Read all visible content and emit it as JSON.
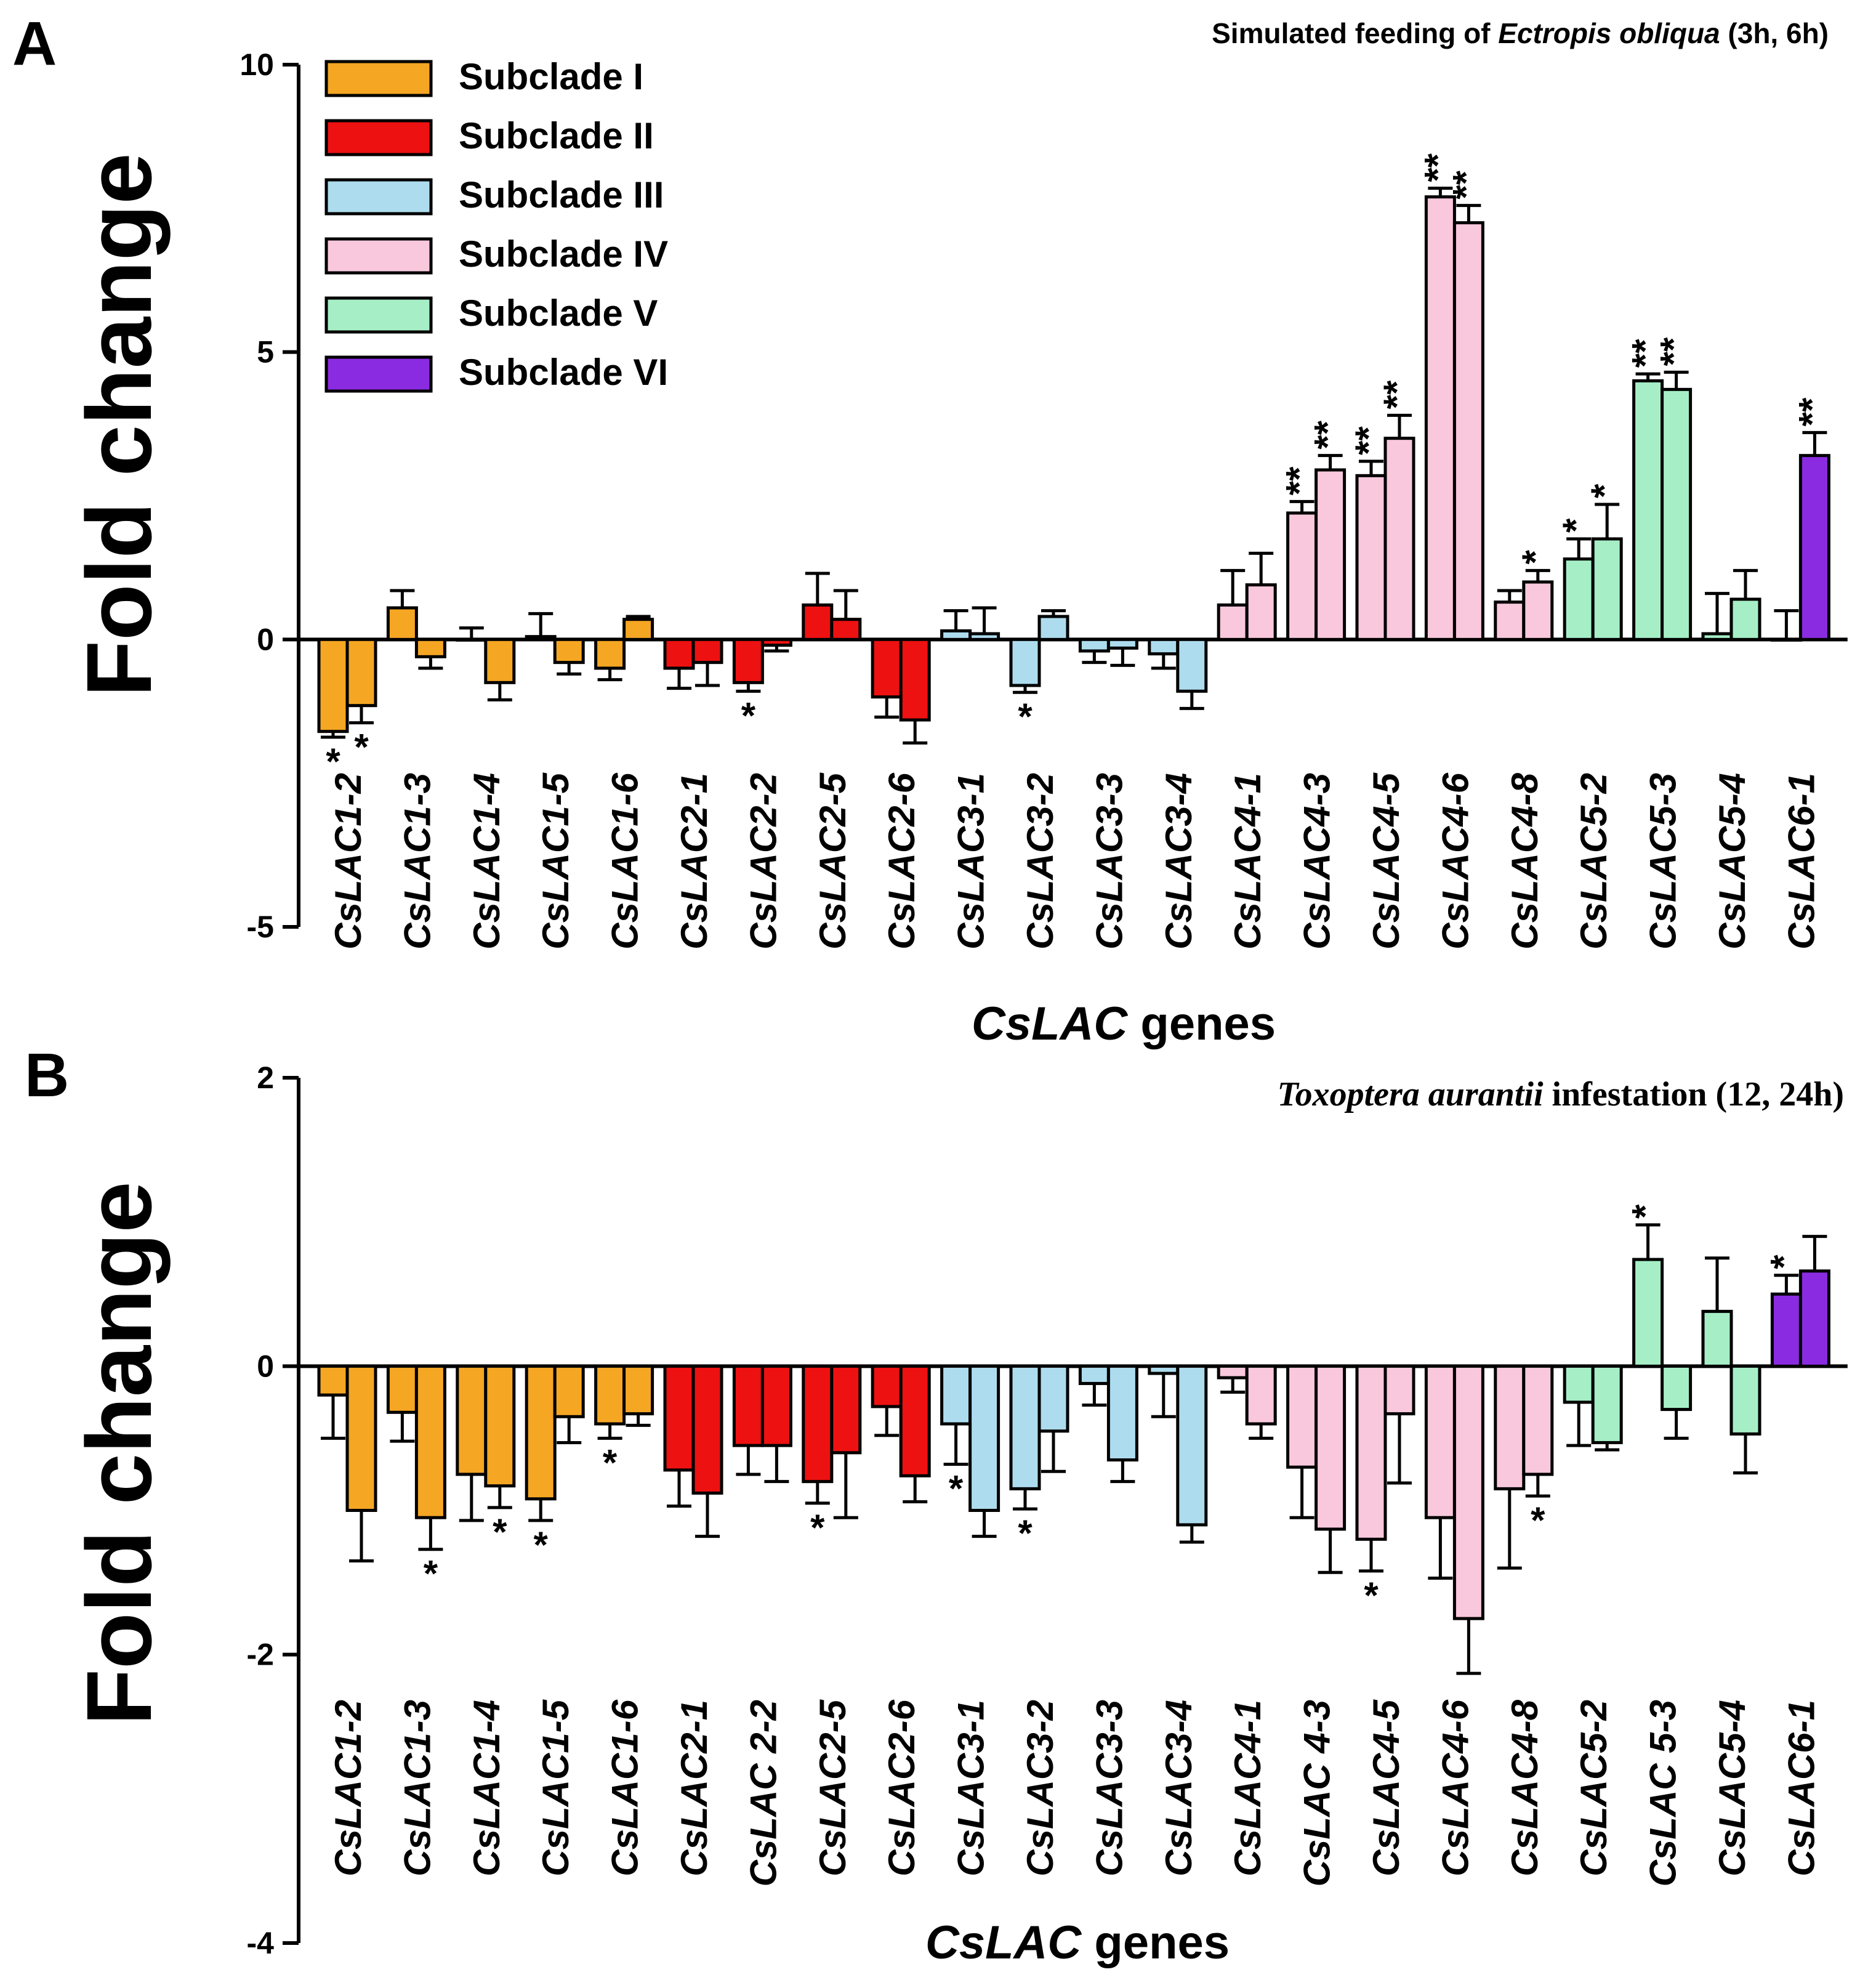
{
  "colors": {
    "subclade_I": "#F5A623",
    "subclade_II": "#EE1111",
    "subclade_III": "#ADDCEE",
    "subclade_IV": "#F9C8DC",
    "subclade_V": "#A6EFC6",
    "subclade_VI": "#8A2BE2"
  },
  "legend": [
    {
      "label": "Subclade I",
      "color_key": "subclade_I"
    },
    {
      "label": "Subclade II",
      "color_key": "subclade_II"
    },
    {
      "label": "Subclade III",
      "color_key": "subclade_III"
    },
    {
      "label": "Subclade IV",
      "color_key": "subclade_IV"
    },
    {
      "label": "Subclade V",
      "color_key": "subclade_V"
    },
    {
      "label": "Subclade VI",
      "color_key": "subclade_VI"
    }
  ],
  "chart_data": [
    {
      "panel": "A",
      "type": "bar",
      "subtitle_parts": [
        "Simulated feeding of ",
        "Ectropis obliqua",
        " (3h, 6h)"
      ],
      "xlabel_italic": "CsLAC",
      "xlabel_rest": " genes",
      "ylabel": "Fold change",
      "ylim": [
        -5,
        10
      ],
      "yticks": [
        -5,
        0,
        5,
        10
      ],
      "legend_position": "top-left",
      "categories": [
        "CsLAC1-2",
        "CsLAC1-3",
        "CsLAC1-4",
        "CsLAC1-5",
        "CsLAC1-6",
        "CsLAC2-1",
        "CsLAC2-2",
        "CsLAC2-5",
        "CsLAC2-6",
        "CsLAC3-1",
        "CsLAC3-2",
        "CsLAC3-3",
        "CsLAC3-4",
        "CsLAC4-1",
        "CsLAC4-3",
        "CsLAC4-5",
        "CsLAC4-6",
        "CsLAC4-8",
        "CsLAC5-2",
        "CsLAC5-3",
        "CsLAC5-4",
        "CsLAC6-1"
      ],
      "subclade": [
        "subclade_I",
        "subclade_I",
        "subclade_I",
        "subclade_I",
        "subclade_I",
        "subclade_II",
        "subclade_II",
        "subclade_II",
        "subclade_II",
        "subclade_III",
        "subclade_III",
        "subclade_III",
        "subclade_III",
        "subclade_IV",
        "subclade_IV",
        "subclade_IV",
        "subclade_IV",
        "subclade_IV",
        "subclade_V",
        "subclade_V",
        "subclade_V",
        "subclade_VI"
      ],
      "series": [
        {
          "name": "3h",
          "values": [
            -1.6,
            0.55,
            0.0,
            0.05,
            -0.5,
            -0.5,
            -0.75,
            0.6,
            -1.0,
            0.15,
            -0.8,
            -0.2,
            -0.25,
            0.6,
            2.2,
            2.85,
            7.7,
            0.65,
            1.4,
            4.5,
            0.1,
            0.0
          ],
          "errors": [
            0.1,
            0.3,
            0.2,
            0.4,
            0.2,
            0.35,
            0.15,
            0.55,
            0.35,
            0.35,
            0.12,
            0.2,
            0.25,
            0.6,
            0.2,
            0.25,
            0.15,
            0.2,
            0.35,
            0.12,
            0.7,
            0.5
          ],
          "sig": [
            "*",
            "",
            "",
            "",
            "",
            "",
            "*",
            "",
            "",
            "",
            "*",
            "",
            "",
            "",
            "**",
            "**",
            "**",
            "",
            "*",
            "**",
            "",
            ""
          ]
        },
        {
          "name": "6h",
          "values": [
            -1.15,
            -0.3,
            -0.75,
            -0.4,
            0.35,
            -0.4,
            -0.1,
            0.35,
            -1.4,
            0.1,
            0.4,
            -0.15,
            -0.9,
            0.95,
            2.95,
            3.5,
            7.25,
            1.0,
            1.75,
            4.35,
            0.7,
            3.2
          ],
          "errors": [
            0.3,
            0.2,
            0.3,
            0.2,
            0.05,
            0.4,
            0.1,
            0.5,
            0.4,
            0.45,
            0.1,
            0.3,
            0.3,
            0.55,
            0.25,
            0.4,
            0.3,
            0.2,
            0.6,
            0.3,
            0.5,
            0.4
          ],
          "sig": [
            "*",
            "",
            "",
            "",
            "",
            "",
            "",
            "",
            "",
            "",
            "",
            "",
            "",
            "",
            "**",
            "**",
            "**",
            "*",
            "*",
            "**",
            "",
            "**"
          ]
        }
      ]
    },
    {
      "panel": "B",
      "type": "bar",
      "subtitle_parts": [
        "",
        "Toxoptera aurantii",
        " infestation (12, 24h)"
      ],
      "xlabel_italic": "CsLAC",
      "xlabel_rest": " genes",
      "ylabel": "Fold change",
      "ylim": [
        -4,
        2
      ],
      "yticks": [
        -4,
        -2,
        0,
        2
      ],
      "categories": [
        "CsLAC1-2",
        "CsLAC1-3",
        "CsLAC1-4",
        "CsLAC1-5",
        "CsLAC1-6",
        "CsLAC2-1",
        "CsLAC 2-2",
        "CsLAC2-5",
        "CsLAC2-6",
        "CsLAC3-1",
        "CsLAC3-2",
        "CsLAC3-3",
        "CsLAC3-4",
        "CsLAC4-1",
        "CsLAC 4-3",
        "CsLAC4-5",
        "CsLAC4-6",
        "CsLAC4-8",
        "CsLAC5-2",
        "CsLAC 5-3",
        "CsLAC5-4",
        "CsLAC6-1"
      ],
      "subclade": [
        "subclade_I",
        "subclade_I",
        "subclade_I",
        "subclade_I",
        "subclade_I",
        "subclade_II",
        "subclade_II",
        "subclade_II",
        "subclade_II",
        "subclade_III",
        "subclade_III",
        "subclade_III",
        "subclade_III",
        "subclade_IV",
        "subclade_IV",
        "subclade_IV",
        "subclade_IV",
        "subclade_IV",
        "subclade_V",
        "subclade_V",
        "subclade_V",
        "subclade_VI"
      ],
      "series": [
        {
          "name": "12h",
          "values": [
            -0.2,
            -0.32,
            -0.75,
            -0.92,
            -0.4,
            -0.72,
            -0.55,
            -0.8,
            -0.28,
            -0.4,
            -0.85,
            -0.12,
            -0.05,
            -0.08,
            -0.7,
            -1.2,
            -1.05,
            -0.85,
            -0.25,
            0.74,
            0.38,
            0.5
          ],
          "errors": [
            0.3,
            0.2,
            0.32,
            0.15,
            0.1,
            0.25,
            0.2,
            0.15,
            0.2,
            0.28,
            0.14,
            0.15,
            0.3,
            0.1,
            0.35,
            0.22,
            0.42,
            0.55,
            0.3,
            0.24,
            0.37,
            0.13
          ],
          "sig": [
            "",
            "",
            "",
            "*",
            "*",
            "",
            "",
            "*",
            "",
            "*",
            "*",
            "",
            "",
            "",
            "",
            "*",
            "",
            "",
            "",
            "*",
            "",
            "*"
          ]
        },
        {
          "name": "24h",
          "values": [
            -1.0,
            -1.05,
            -0.83,
            -0.35,
            -0.33,
            -0.88,
            -0.55,
            -0.6,
            -0.76,
            -1.0,
            -0.45,
            -0.65,
            -1.1,
            -0.4,
            -1.13,
            -0.33,
            -1.75,
            -0.75,
            -0.53,
            -0.3,
            -0.47,
            0.66
          ],
          "errors": [
            0.35,
            0.22,
            0.15,
            0.18,
            0.08,
            0.3,
            0.25,
            0.45,
            0.18,
            0.18,
            0.28,
            0.15,
            0.12,
            0.1,
            0.3,
            0.48,
            0.38,
            0.15,
            0.05,
            0.2,
            0.27,
            0.24
          ],
          "sig": [
            "",
            "*",
            "*",
            "",
            "",
            "",
            "",
            "",
            "",
            "",
            "",
            "",
            "",
            "",
            "",
            "",
            "",
            "*",
            "",
            "",
            "",
            ""
          ]
        }
      ]
    }
  ]
}
